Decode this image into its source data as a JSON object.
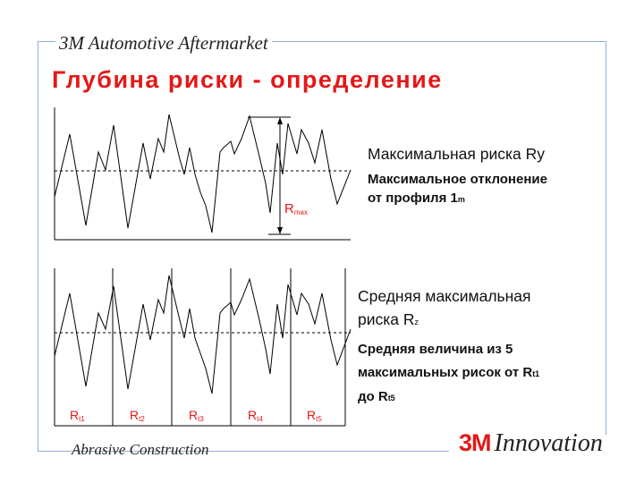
{
  "header": {
    "title": "3M Automotive Aftermarket"
  },
  "footer": {
    "title": "Abrasive Construction"
  },
  "slide": {
    "title": "Глубина риски - определение"
  },
  "upper": {
    "rmax_label": "R",
    "rmax_sub": "max",
    "heading": "Максимальная риска Ry",
    "desc_line1": "Максимальное отклонение",
    "desc_line2": "от профиля 1",
    "desc_sub": "m"
  },
  "lower": {
    "heading_line1": "Средняя максимальная",
    "heading_line2": "риска R",
    "heading_sub": "z",
    "desc_line1": "Средняя величина из 5",
    "desc_line2": "максимальных рисок от R",
    "desc_sub1": "t1",
    "desc_line3": "до R",
    "desc_sub2": "t5",
    "segments": [
      {
        "label": "R",
        "sub": "t1"
      },
      {
        "label": "R",
        "sub": "t2"
      },
      {
        "label": "R",
        "sub": "t3"
      },
      {
        "label": "R",
        "sub": "t4"
      },
      {
        "label": "R",
        "sub": "t5"
      }
    ]
  },
  "brand": {
    "logo": "3M",
    "tagline": "Innovation"
  },
  "colors": {
    "accent": "#e41818",
    "frame": "#8fb0d8",
    "line": "#000000"
  }
}
